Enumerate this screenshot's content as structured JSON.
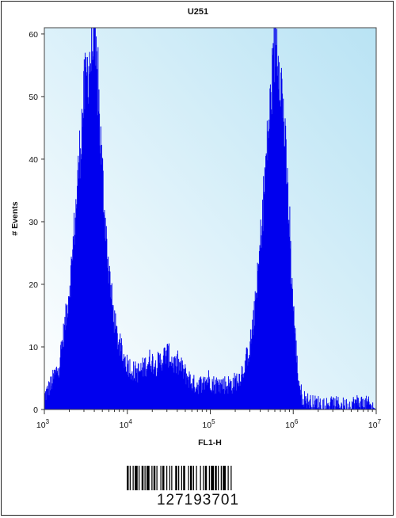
{
  "chart_data": {
    "type": "histogram",
    "title": "U251",
    "xlabel": "FL1-H",
    "ylabel": "# Events",
    "x_scale": "log",
    "xlim": [
      1000,
      10000000
    ],
    "ylim": [
      0,
      61
    ],
    "x_tick_labels": [
      {
        "value": 1000,
        "base": "10",
        "exp": "3"
      },
      {
        "value": 10000,
        "base": "10",
        "exp": "4"
      },
      {
        "value": 100000,
        "base": "10",
        "exp": "5"
      },
      {
        "value": 1000000,
        "base": "10",
        "exp": "6"
      },
      {
        "value": 10000000,
        "base": "10",
        "exp": "7"
      }
    ],
    "y_ticks": [
      0,
      10,
      20,
      30,
      40,
      50,
      60
    ],
    "grid": false,
    "fill_color": "#0000ee",
    "background_gradient": [
      "#ffffff",
      "#b9e3f4"
    ],
    "series": [
      {
        "x": [
          1000,
          1200,
          1500,
          1800,
          2100,
          2400,
          2700,
          3000,
          3300,
          3600,
          3900,
          4200,
          4500,
          4800,
          5200,
          5600,
          6100,
          6700,
          7400,
          8200,
          9200,
          10500,
          12000,
          14000,
          16500,
          19000,
          22000,
          26000,
          30000,
          34000,
          38000,
          43000,
          48000,
          55000,
          63000,
          72000,
          82000,
          95000,
          110000,
          130000,
          155000,
          185000,
          220000,
          260000,
          300000,
          340000,
          380000,
          420000,
          460000,
          500000,
          540000,
          580000,
          620000,
          660000,
          700000,
          750000,
          800000,
          870000,
          950000,
          1050000,
          1150000,
          1280000,
          1450000,
          1700000,
          2100000,
          2700000,
          3500000,
          4500000,
          6000000,
          8000000,
          10000000
        ],
        "y": [
          2,
          4,
          7,
          14,
          22,
          32,
          42,
          50,
          54,
          56,
          58,
          55,
          50,
          42,
          34,
          27,
          21,
          16,
          12,
          10,
          8,
          7,
          6,
          6,
          7,
          8,
          7,
          8,
          9,
          8,
          7,
          7,
          6,
          5,
          4,
          4,
          4,
          5,
          4,
          4,
          4,
          4,
          5,
          7,
          10,
          15,
          22,
          30,
          38,
          44,
          50,
          56,
          59,
          58,
          54,
          49,
          42,
          33,
          22,
          12,
          5,
          2,
          1.5,
          1,
          1,
          0.8,
          0.8,
          0.6,
          1.2,
          0.8,
          0
        ]
      }
    ]
  },
  "barcode": {
    "number": "127193701"
  }
}
